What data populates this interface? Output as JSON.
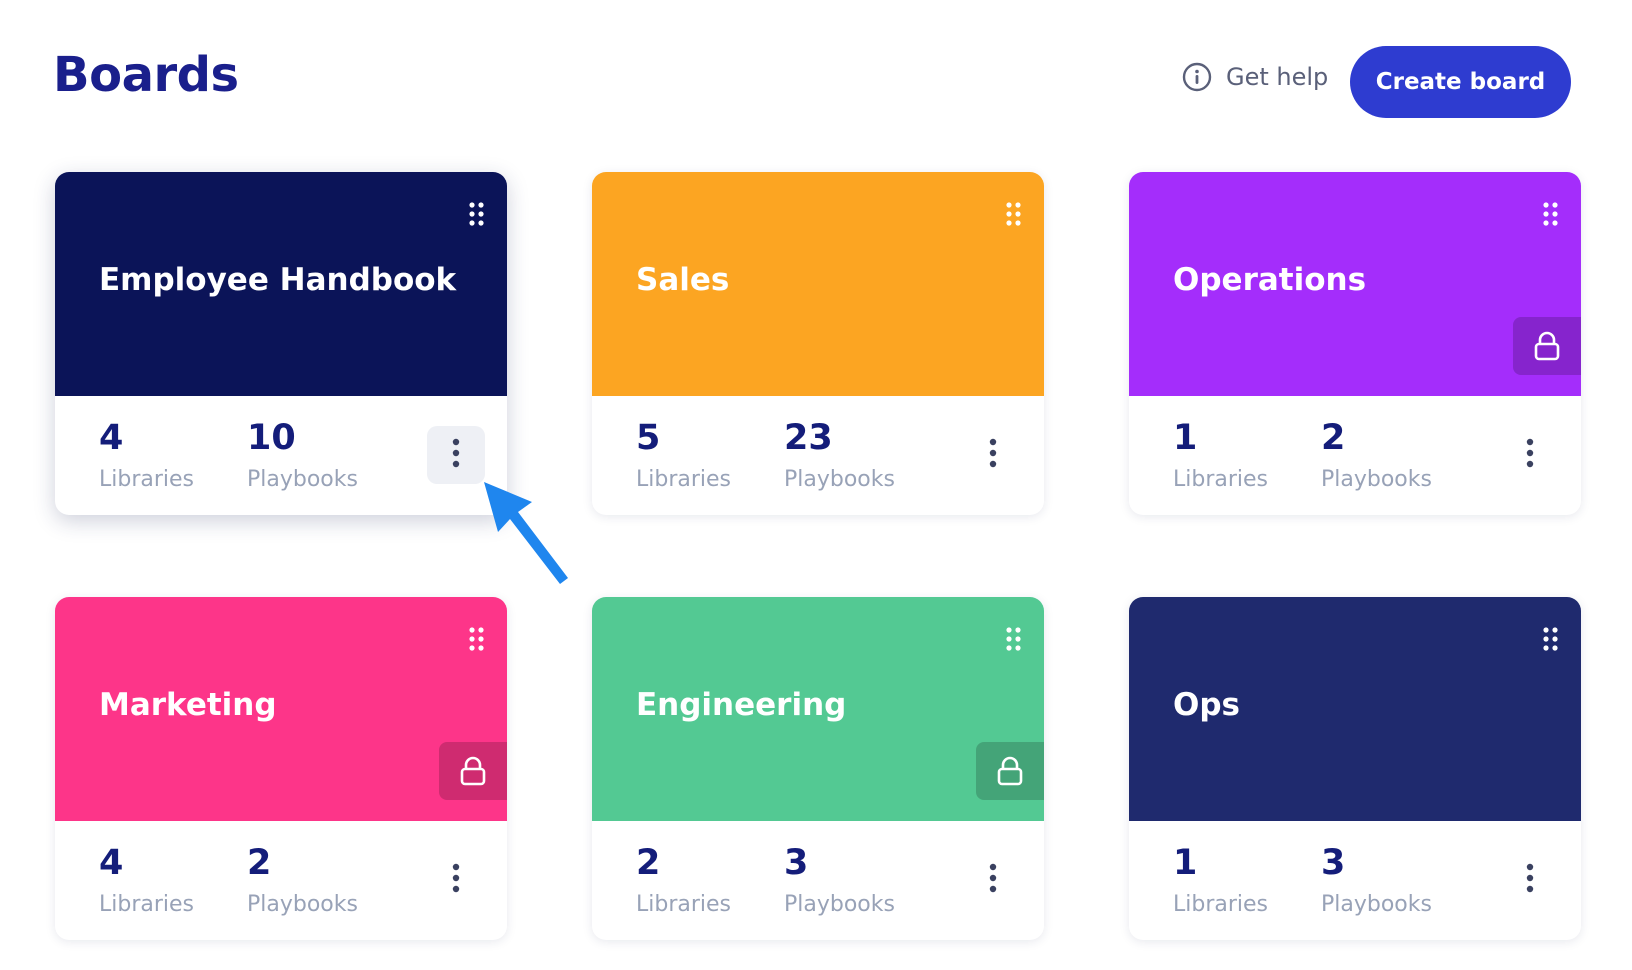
{
  "header": {
    "title": "Boards",
    "help_label": "Get help",
    "help_icon": "info-circle-icon",
    "create_label": "Create board"
  },
  "colors": {
    "title": "#1a1f8c",
    "primary": "#2e3cd0",
    "stat_number": "#141d7a",
    "stat_label": "#98a2b7"
  },
  "boards": [
    {
      "title": "Employee Handbook",
      "color": "#0b1458",
      "locked": false,
      "libraries": "4",
      "libraries_label": "Libraries",
      "playbooks": "10",
      "playbooks_label": "Playbooks"
    },
    {
      "title": "Sales",
      "color": "#fca522",
      "locked": false,
      "libraries": "5",
      "libraries_label": "Libraries",
      "playbooks": "23",
      "playbooks_label": "Playbooks"
    },
    {
      "title": "Operations",
      "color": "#a42dfb",
      "locked": true,
      "libraries": "1",
      "libraries_label": "Libraries",
      "playbooks": "2",
      "playbooks_label": "Playbooks"
    },
    {
      "title": "Marketing",
      "color": "#fd3589",
      "locked": true,
      "libraries": "4",
      "libraries_label": "Libraries",
      "playbooks": "2",
      "playbooks_label": "Playbooks"
    },
    {
      "title": "Engineering",
      "color": "#53c993",
      "locked": true,
      "libraries": "2",
      "libraries_label": "Libraries",
      "playbooks": "3",
      "playbooks_label": "Playbooks"
    },
    {
      "title": "Ops",
      "color": "#1f2a6e",
      "locked": false,
      "libraries": "1",
      "libraries_label": "Libraries",
      "playbooks": "3",
      "playbooks_label": "Playbooks"
    }
  ]
}
